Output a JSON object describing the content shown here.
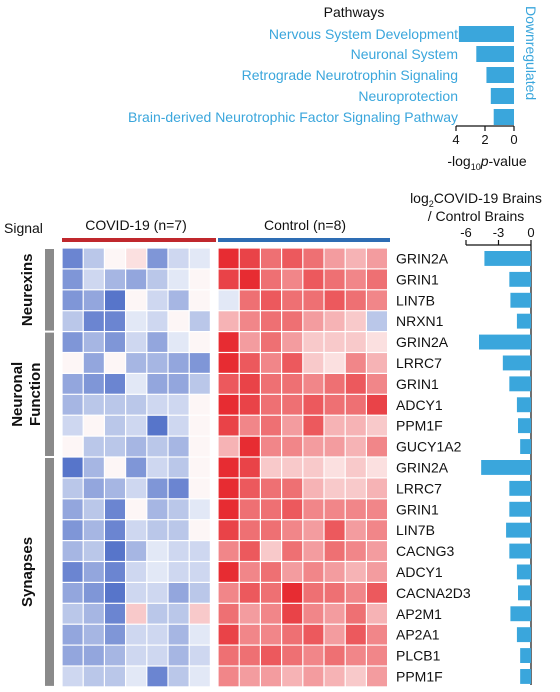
{
  "pathways": {
    "title": "Pathways",
    "side_label": "Downregulated",
    "items": [
      {
        "name": "Nervous System Development",
        "value": 3.8
      },
      {
        "name": "Neuronal System",
        "value": 2.6
      },
      {
        "name": "Retrograde Neurotrophin Signaling",
        "value": 1.9
      },
      {
        "name": "Neuroprotection",
        "value": 1.6
      },
      {
        "name": "Brain-derived Neurotrophic Factor Signaling Pathway",
        "value": 1.4
      }
    ],
    "axis": {
      "ticks": [
        "4",
        "2",
        "0"
      ],
      "label_prefix": "-log",
      "label_sub": "10",
      "label_italic": "p",
      "label_suffix": "-value",
      "range": [
        4,
        0
      ]
    },
    "color": "#3aa6dc"
  },
  "heatmap": {
    "signal_label": "Signal",
    "covid_label": "COVID-19 (n=7)",
    "control_label": "Control (n=8)",
    "covid_color": "#c0282d",
    "control_color": "#2e6db4",
    "groups": [
      {
        "name": "Neurexins",
        "rows": 4
      },
      {
        "name": "Neuronal Function",
        "lines": [
          "Neuronal",
          "Function"
        ],
        "rows": 6
      },
      {
        "name": "Synapses",
        "rows": 11
      }
    ],
    "genes": [
      "GRIN2A",
      "GRIN1",
      "LIN7B",
      "NRXN1",
      "GRIN2A",
      "LRRC7",
      "GRIN1",
      "ADCY1",
      "PPM1F",
      "GUCY1A2",
      "GRIN2A",
      "LRRC7",
      "GRIN1",
      "LIN7B",
      "CACNG3",
      "ADCY1",
      "CACNA2D3",
      "AP2M1",
      "AP2A1",
      "PLCB1",
      "PPM1F"
    ]
  },
  "fold_change": {
    "title_line1": "log2COVID-19 Brains",
    "title_prefix": "log",
    "title_sub": "2",
    "title_rest": "COVID-19 Brains",
    "title_line2": "/ Control Brains",
    "ticks": [
      "-6",
      "-3",
      "0"
    ],
    "range": [
      -6,
      0
    ],
    "values": [
      -4.3,
      -2.0,
      -1.9,
      -1.3,
      -4.8,
      -2.6,
      -2.0,
      -1.3,
      -1.2,
      -1.0,
      -4.6,
      -2.0,
      -2.0,
      -2.3,
      -2.0,
      -1.3,
      -1.2,
      -1.9,
      -1.3,
      -1.0,
      -1.0
    ],
    "color": "#3aa6dc"
  },
  "chart_data": [
    {
      "type": "bar",
      "title": "Pathways",
      "categories": [
        "Nervous System Development",
        "Neuronal System",
        "Retrograde Neurotrophin Signaling",
        "Neuroprotection",
        "Brain-derived Neurotrophic Factor Signaling Pathway"
      ],
      "values": [
        3.8,
        2.6,
        1.9,
        1.6,
        1.4
      ],
      "xlabel": "-log10 p-value",
      "xlim": [
        4,
        0
      ],
      "annotation": "Downregulated"
    },
    {
      "type": "heatmap",
      "columns_groups": [
        "COVID-19 (n=7)",
        "Control (n=8)"
      ],
      "rows": [
        "GRIN2A",
        "GRIN1",
        "LIN7B",
        "NRXN1",
        "GRIN2A",
        "LRRC7",
        "GRIN1",
        "ADCY1",
        "PPM1F",
        "GUCY1A2",
        "GRIN2A",
        "LRRC7",
        "GRIN1",
        "LIN7B",
        "CACNG3",
        "ADCY1",
        "CACNA2D3",
        "AP2M1",
        "AP2A1",
        "PLCB1",
        "PPM1F"
      ],
      "row_groups": [
        "Neurexins",
        "Neuronal Function",
        "Synapses"
      ],
      "values": [
        [
          -0.7,
          -0.3,
          0.0,
          0.1,
          -0.6,
          -0.2,
          -0.1,
          0.9,
          0.8,
          0.6,
          0.7,
          0.6,
          0.4,
          0.3,
          0.4
        ],
        [
          -0.6,
          -0.2,
          -0.4,
          -0.5,
          -0.3,
          -0.1,
          0.0,
          0.8,
          0.9,
          0.6,
          0.5,
          0.7,
          0.6,
          0.5,
          0.6
        ],
        [
          -0.6,
          -0.5,
          -0.8,
          0.0,
          -0.2,
          -0.4,
          0.0,
          -0.1,
          0.6,
          0.7,
          0.6,
          0.6,
          0.7,
          0.6,
          0.5
        ],
        [
          -0.3,
          -0.7,
          -0.7,
          -0.1,
          -0.2,
          0.0,
          -0.3,
          0.3,
          0.5,
          0.6,
          0.6,
          0.4,
          0.3,
          0.2,
          -0.3
        ],
        [
          -0.6,
          -0.4,
          -0.6,
          -0.2,
          -0.5,
          -0.1,
          0.0,
          0.9,
          0.4,
          0.6,
          0.4,
          0.2,
          0.2,
          0.2,
          0.1
        ],
        [
          0.0,
          -0.5,
          0.0,
          -0.4,
          -0.4,
          -0.5,
          -0.6,
          0.9,
          0.7,
          0.5,
          0.7,
          0.2,
          0.1,
          0.5,
          0.3
        ],
        [
          -0.5,
          -0.6,
          -0.7,
          -0.1,
          -0.5,
          -0.5,
          -0.3,
          0.7,
          0.8,
          0.6,
          0.6,
          0.5,
          0.6,
          0.7,
          0.5
        ],
        [
          -0.4,
          -0.3,
          -0.3,
          -0.3,
          -0.2,
          -0.2,
          0.0,
          0.9,
          0.8,
          0.6,
          0.6,
          0.7,
          0.6,
          0.6,
          0.8
        ],
        [
          -0.2,
          0.0,
          -0.3,
          -0.2,
          -0.8,
          -0.2,
          0.0,
          0.8,
          0.5,
          0.6,
          0.4,
          0.7,
          0.3,
          0.3,
          0.2
        ],
        [
          0.0,
          -0.3,
          -0.3,
          -0.4,
          -0.3,
          -0.4,
          0.0,
          0.3,
          0.9,
          0.5,
          0.5,
          0.4,
          0.4,
          0.3,
          0.5
        ],
        [
          -0.8,
          -0.4,
          0.0,
          -0.6,
          -0.2,
          -0.3,
          0.0,
          0.9,
          0.8,
          0.2,
          0.2,
          0.2,
          0.1,
          0.2,
          0.1
        ],
        [
          -0.3,
          -0.5,
          -0.4,
          -0.2,
          -0.6,
          -0.7,
          0.0,
          0.9,
          0.7,
          0.6,
          0.6,
          0.3,
          0.2,
          0.2,
          0.3
        ],
        [
          -0.5,
          -0.3,
          -0.7,
          0.0,
          -0.4,
          -0.3,
          -0.1,
          0.9,
          0.6,
          0.6,
          0.7,
          0.5,
          0.5,
          0.5,
          0.5
        ],
        [
          -0.6,
          -0.4,
          -0.7,
          -0.2,
          -0.3,
          -0.3,
          0.0,
          0.8,
          0.6,
          0.6,
          0.5,
          0.4,
          0.7,
          0.4,
          0.5
        ],
        [
          -0.4,
          -0.3,
          -0.8,
          -0.4,
          -0.1,
          -0.2,
          -0.2,
          0.5,
          0.7,
          0.2,
          0.6,
          0.4,
          0.6,
          0.5,
          0.4
        ],
        [
          -0.7,
          -0.5,
          -0.7,
          -0.2,
          -0.1,
          -0.2,
          -0.2,
          0.9,
          0.5,
          0.6,
          0.4,
          0.5,
          0.4,
          0.3,
          0.4
        ],
        [
          -0.5,
          -0.6,
          -0.8,
          -0.2,
          -0.2,
          -0.5,
          -0.3,
          0.5,
          0.7,
          0.6,
          0.9,
          0.6,
          0.6,
          0.5,
          0.7
        ],
        [
          -0.3,
          -0.4,
          -0.7,
          0.2,
          -0.3,
          -0.3,
          0.2,
          0.6,
          0.4,
          0.5,
          0.8,
          0.5,
          0.4,
          0.6,
          0.3
        ],
        [
          -0.5,
          -0.4,
          -0.6,
          -0.2,
          -0.2,
          -0.4,
          -0.1,
          0.8,
          0.5,
          0.5,
          0.6,
          0.7,
          0.4,
          0.7,
          0.5
        ],
        [
          -0.5,
          -0.5,
          -0.4,
          -0.2,
          -0.2,
          -0.4,
          -0.2,
          0.6,
          0.6,
          0.7,
          0.6,
          0.5,
          0.6,
          0.5,
          0.5
        ],
        [
          -0.2,
          -0.3,
          -0.3,
          -0.1,
          -0.7,
          -0.3,
          -0.1,
          0.5,
          0.4,
          0.4,
          0.3,
          0.4,
          0.3,
          0.2,
          0.4
        ]
      ]
    },
    {
      "type": "bar",
      "title": "log2COVID-19 Brains / Control Brains",
      "categories": [
        "GRIN2A",
        "GRIN1",
        "LIN7B",
        "NRXN1",
        "GRIN2A",
        "LRRC7",
        "GRIN1",
        "ADCY1",
        "PPM1F",
        "GUCY1A2",
        "GRIN2A",
        "LRRC7",
        "GRIN1",
        "LIN7B",
        "CACNG3",
        "ADCY1",
        "CACNA2D3",
        "AP2M1",
        "AP2A1",
        "PLCB1",
        "PPM1F"
      ],
      "values": [
        -4.3,
        -2.0,
        -1.9,
        -1.3,
        -4.8,
        -2.6,
        -2.0,
        -1.3,
        -1.2,
        -1.0,
        -4.6,
        -2.0,
        -2.0,
        -2.3,
        -2.0,
        -1.3,
        -1.2,
        -1.9,
        -1.3,
        -1.0,
        -1.0
      ],
      "xlim": [
        -6,
        0
      ]
    }
  ]
}
